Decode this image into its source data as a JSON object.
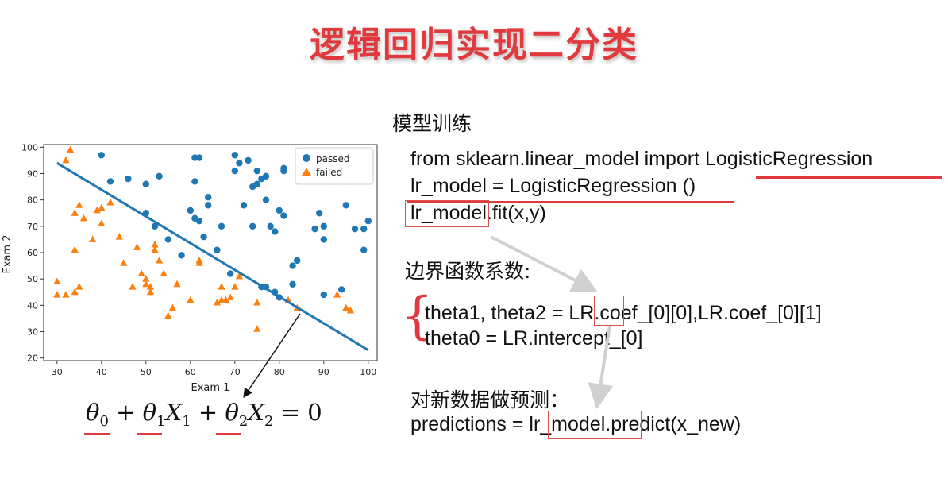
{
  "page": {
    "title": "逻辑回归实现二分类"
  },
  "chart_data": {
    "type": "scatter",
    "xlabel": "Exam 1",
    "ylabel": "Exam 2",
    "xlim": [
      27,
      102
    ],
    "ylim": [
      19,
      101
    ],
    "xticks": [
      30,
      40,
      50,
      60,
      70,
      80,
      90,
      100
    ],
    "yticks": [
      20,
      30,
      40,
      50,
      60,
      70,
      80,
      90,
      100
    ],
    "legend_position": "top-right",
    "series": [
      {
        "name": "passed",
        "marker": "circle",
        "color": "#1f77b4",
        "points": [
          [
            40,
            97
          ],
          [
            42,
            87
          ],
          [
            46,
            88
          ],
          [
            50,
            75
          ],
          [
            50,
            86
          ],
          [
            52,
            70
          ],
          [
            53,
            89
          ],
          [
            55,
            65
          ],
          [
            58,
            59
          ],
          [
            60,
            76
          ],
          [
            61,
            87
          ],
          [
            61,
            96
          ],
          [
            62,
            96
          ],
          [
            61,
            73
          ],
          [
            62,
            72
          ],
          [
            63,
            66
          ],
          [
            64,
            81
          ],
          [
            64,
            78
          ],
          [
            66,
            61
          ],
          [
            67,
            70
          ],
          [
            69,
            52
          ],
          [
            70,
            97
          ],
          [
            70,
            91
          ],
          [
            71,
            94
          ],
          [
            72,
            78
          ],
          [
            73,
            95
          ],
          [
            74,
            85
          ],
          [
            74,
            70
          ],
          [
            75,
            91
          ],
          [
            75,
            86
          ],
          [
            76,
            88
          ],
          [
            77,
            89
          ],
          [
            77,
            80
          ],
          [
            78,
            70
          ],
          [
            79,
            68
          ],
          [
            80,
            76
          ],
          [
            81,
            91
          ],
          [
            81,
            92
          ],
          [
            81,
            74
          ],
          [
            76,
            47
          ],
          [
            77,
            47
          ],
          [
            79,
            45
          ],
          [
            80,
            43
          ],
          [
            83,
            48
          ],
          [
            83,
            55
          ],
          [
            84,
            57
          ],
          [
            88,
            69
          ],
          [
            89,
            75
          ],
          [
            90,
            70
          ],
          [
            90,
            88
          ],
          [
            91,
            87
          ],
          [
            90,
            65
          ],
          [
            90,
            44
          ],
          [
            94,
            46
          ],
          [
            95,
            78
          ],
          [
            96,
            87
          ],
          [
            97,
            69
          ],
          [
            99,
            69
          ],
          [
            99,
            61
          ],
          [
            100,
            72
          ]
        ]
      },
      {
        "name": "failed",
        "marker": "triangle",
        "color": "#ff7f0e",
        "points": [
          [
            30,
            49
          ],
          [
            30,
            44
          ],
          [
            32,
            95
          ],
          [
            33,
            99
          ],
          [
            32,
            44
          ],
          [
            34,
            45
          ],
          [
            34,
            61
          ],
          [
            34,
            75
          ],
          [
            35,
            78
          ],
          [
            35,
            47
          ],
          [
            36,
            73
          ],
          [
            38,
            65
          ],
          [
            39,
            76
          ],
          [
            40,
            71
          ],
          [
            40,
            77
          ],
          [
            42,
            79
          ],
          [
            44,
            66
          ],
          [
            45,
            56
          ],
          [
            47,
            47
          ],
          [
            48,
            62
          ],
          [
            49,
            52
          ],
          [
            50,
            50
          ],
          [
            50,
            48
          ],
          [
            51,
            47
          ],
          [
            51,
            45
          ],
          [
            52,
            63
          ],
          [
            52,
            61
          ],
          [
            53,
            57
          ],
          [
            54,
            52
          ],
          [
            55,
            36
          ],
          [
            56,
            39
          ],
          [
            57,
            48
          ],
          [
            60,
            42
          ],
          [
            62,
            56
          ],
          [
            62,
            57
          ],
          [
            66,
            41
          ],
          [
            67,
            42
          ],
          [
            67,
            47
          ],
          [
            68,
            42
          ],
          [
            69,
            43
          ],
          [
            70,
            47
          ],
          [
            71,
            51
          ],
          [
            75,
            41
          ],
          [
            75,
            31
          ],
          [
            82,
            42
          ],
          [
            84,
            39
          ],
          [
            93,
            44
          ],
          [
            95,
            39
          ],
          [
            96,
            38
          ]
        ]
      }
    ],
    "decision_boundary": {
      "from": [
        30,
        94
      ],
      "to": [
        100,
        23
      ],
      "color": "#1f77b4"
    }
  },
  "formula": {
    "theta0": "θ",
    "sub0": "0",
    "plus1": " + ",
    "theta1": "θ",
    "sub1": "1",
    "x1": "X",
    "x1sub": "1",
    "plus2": " + ",
    "theta2": "θ",
    "sub2": "2",
    "x2": "X",
    "x2sub": "2",
    "eq": " = 0"
  },
  "training": {
    "heading": "模型训练",
    "line1_pre": "from sklearn.linear_model import ",
    "line1_hl": "LogisticRegression",
    "line2": "lr_model = LogisticRegression ()",
    "line3_hl": "lr_model",
    "line3_post": ".fit(x,y)"
  },
  "boundary": {
    "heading": "边界函数系数:",
    "line1_pre": "theta1, theta2 = ",
    "line1_hl": "LR",
    "line1_post": ".coef_[0][0],LR.coef_[0][1]",
    "line2": "theta0 = LR.intercept_[0]"
  },
  "predict": {
    "heading": "对新数据做预测：",
    "line_pre": "predictions = ",
    "line_hl": "lr_model",
    "line_post": ".predict(x_new)"
  }
}
